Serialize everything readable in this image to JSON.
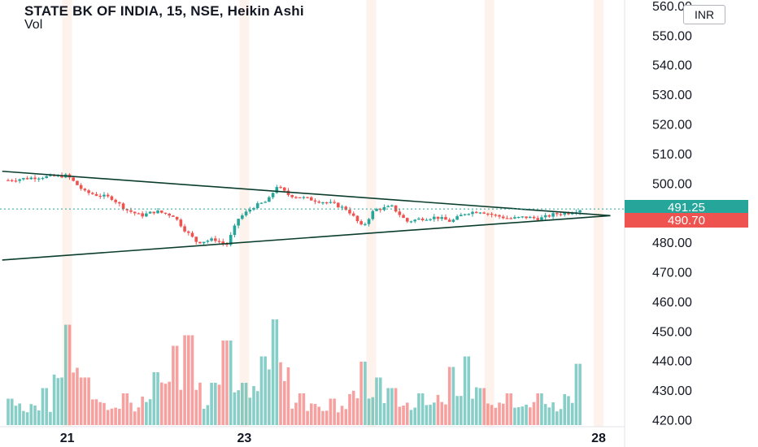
{
  "header": {
    "title": "STATE BK OF INDIA, 15, NSE, Heikin Ashi",
    "volume_label": "Vol",
    "currency": "INR"
  },
  "price_badges": {
    "last": "491.25",
    "previous": "490.70"
  },
  "colors": {
    "up": "#26a69a",
    "down": "#ef5350",
    "trendline": "#0b3d2e",
    "session_band": "#fde7dc"
  },
  "chart_data": {
    "type": "candlestick",
    "style": "Heikin Ashi",
    "symbol": "STATE BK OF INDIA",
    "interval": "15",
    "exchange": "NSE",
    "ylim": [
      418,
      563
    ],
    "y_ticks": [
      "560.00",
      "550.00",
      "540.00",
      "530.00",
      "520.00",
      "510.00",
      "500.00",
      "480.00",
      "470.00",
      "460.00",
      "450.00",
      "440.00",
      "430.00",
      "420.00"
    ],
    "x_ticks": [
      {
        "label": "21",
        "session": 2
      },
      {
        "label": "23",
        "session": 8
      },
      {
        "label": "28",
        "session": 20
      }
    ],
    "sessions": 21,
    "last_price": 491.25,
    "previous_close": 490.7,
    "price_path": [
      {
        "session": 0,
        "price": 501
      },
      {
        "session": 1,
        "price": 502
      },
      {
        "session": 2,
        "price": 502.5
      },
      {
        "session": 2.6,
        "price": 497
      },
      {
        "session": 3,
        "price": 496
      },
      {
        "session": 3.5,
        "price": 495
      },
      {
        "session": 4,
        "price": 491
      },
      {
        "session": 4.5,
        "price": 489
      },
      {
        "session": 5,
        "price": 490.5
      },
      {
        "session": 5.6,
        "price": 489
      },
      {
        "session": 6,
        "price": 484
      },
      {
        "session": 6.4,
        "price": 480
      },
      {
        "session": 7,
        "price": 481
      },
      {
        "session": 7.4,
        "price": 479
      },
      {
        "session": 7.8,
        "price": 488
      },
      {
        "session": 8.3,
        "price": 492
      },
      {
        "session": 8.8,
        "price": 494
      },
      {
        "session": 9.1,
        "price": 499
      },
      {
        "session": 9.5,
        "price": 496
      },
      {
        "session": 10,
        "price": 495
      },
      {
        "session": 10.5,
        "price": 494
      },
      {
        "session": 11,
        "price": 493
      },
      {
        "session": 11.5,
        "price": 491
      },
      {
        "session": 12,
        "price": 485
      },
      {
        "session": 12.4,
        "price": 491
      },
      {
        "session": 13,
        "price": 492
      },
      {
        "session": 13.5,
        "price": 487
      },
      {
        "session": 14,
        "price": 488
      },
      {
        "session": 14.5,
        "price": 488.5
      },
      {
        "session": 15,
        "price": 487
      },
      {
        "session": 15.5,
        "price": 490
      },
      {
        "session": 16,
        "price": 490.5
      },
      {
        "session": 16.5,
        "price": 489
      },
      {
        "session": 17,
        "price": 488
      },
      {
        "session": 17.5,
        "price": 488.5
      },
      {
        "session": 18,
        "price": 488
      },
      {
        "session": 18.5,
        "price": 489.5
      },
      {
        "session": 19,
        "price": 490
      },
      {
        "session": 19.5,
        "price": 491.5
      }
    ],
    "volume_peaks": [
      {
        "session": 0,
        "value": 0.25
      },
      {
        "session": 1.2,
        "value": 0.35
      },
      {
        "session": 2,
        "value": 0.95
      },
      {
        "session": 2.6,
        "value": 0.45
      },
      {
        "session": 4,
        "value": 0.3
      },
      {
        "session": 5,
        "value": 0.5
      },
      {
        "session": 5.6,
        "value": 0.75
      },
      {
        "session": 6.1,
        "value": 0.85
      },
      {
        "session": 7,
        "value": 0.4
      },
      {
        "session": 7.4,
        "value": 0.8
      },
      {
        "session": 8,
        "value": 0.4
      },
      {
        "session": 8.6,
        "value": 0.65
      },
      {
        "session": 9,
        "value": 1.0
      },
      {
        "session": 10,
        "value": 0.3
      },
      {
        "session": 11,
        "value": 0.25
      },
      {
        "session": 12,
        "value": 0.6
      },
      {
        "session": 12.5,
        "value": 0.45
      },
      {
        "session": 13,
        "value": 0.35
      },
      {
        "session": 14,
        "value": 0.3
      },
      {
        "session": 15,
        "value": 0.55
      },
      {
        "session": 15.5,
        "value": 0.65
      },
      {
        "session": 16,
        "value": 0.35
      },
      {
        "session": 17,
        "value": 0.3
      },
      {
        "session": 18,
        "value": 0.3
      },
      {
        "session": 19.3,
        "value": 0.58
      }
    ],
    "trendlines": [
      {
        "name": "upper",
        "from": {
          "session": -0.2,
          "price": 504
        },
        "to": {
          "session": 20.4,
          "price": 489
        }
      },
      {
        "name": "lower",
        "from": {
          "session": -0.2,
          "price": 474
        },
        "to": {
          "session": 20.4,
          "price": 489
        }
      }
    ]
  }
}
